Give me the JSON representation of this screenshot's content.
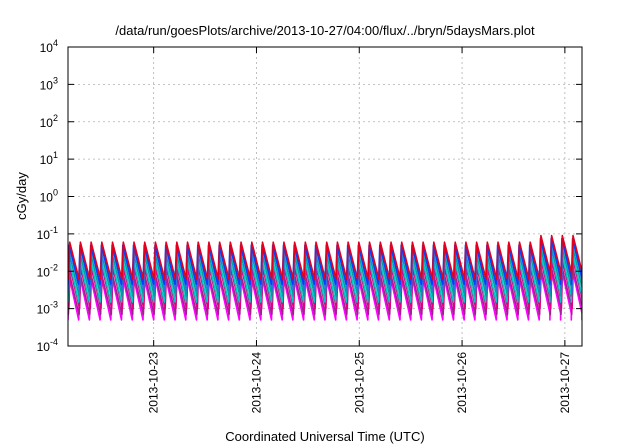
{
  "chart_data": {
    "type": "line",
    "title": "/data/run/goesPlots/archive/2013-10-27/04:00/flux/../bryn/5daysMars.plot",
    "xlabel": "Coordinated Universal Time (UTC)",
    "ylabel": "cGy/day",
    "yscale": "log",
    "ylim": [
      0.0001,
      10000
    ],
    "xlim": [
      "2013-10-22T04:00",
      "2013-10-27T04:00"
    ],
    "grid": true,
    "x_ticks": [
      {
        "value": "2013-10-23T00:00",
        "label": "2013-10-23"
      },
      {
        "value": "2013-10-24T00:00",
        "label": "2013-10-24"
      },
      {
        "value": "2013-10-25T00:00",
        "label": "2013-10-25"
      },
      {
        "value": "2013-10-26T00:00",
        "label": "2013-10-26"
      },
      {
        "value": "2013-10-27T00:00",
        "label": "2013-10-27"
      }
    ],
    "y_ticks": [
      {
        "value": 0.0001,
        "base": "10",
        "exp": "-4"
      },
      {
        "value": 0.001,
        "base": "10",
        "exp": "-3"
      },
      {
        "value": 0.01,
        "base": "10",
        "exp": "-2"
      },
      {
        "value": 0.1,
        "base": "10",
        "exp": "-1"
      },
      {
        "value": 1,
        "base": "10",
        "exp": "0"
      },
      {
        "value": 10,
        "base": "10",
        "exp": "1"
      },
      {
        "value": 100,
        "base": "10",
        "exp": "2"
      },
      {
        "value": 1000,
        "base": "10",
        "exp": "3"
      },
      {
        "value": 10000,
        "base": "10",
        "exp": "4"
      }
    ],
    "cycle_period_hours": 2.5,
    "series": [
      {
        "color": "#ff00ff",
        "peak": 0.007,
        "trough": 0.0005
      },
      {
        "color": "#a0208f",
        "peak": 0.008,
        "trough": 0.0007
      },
      {
        "color": "#e0007f",
        "peak": 0.012,
        "trough": 0.001
      },
      {
        "color": "#00c8c8",
        "peak": 0.02,
        "trough": 0.0015
      },
      {
        "color": "#00a0a0",
        "peak": 0.028,
        "trough": 0.0022
      },
      {
        "color": "#3070e0",
        "peak": 0.04,
        "trough": 0.003
      },
      {
        "color": "#0040ff",
        "peak": 0.05,
        "trough": 0.0045
      },
      {
        "color": "#e00020",
        "peak": 0.06,
        "trough": 0.006
      }
    ],
    "event": {
      "start": "2013-10-26T16:00",
      "end": "2013-10-27T04:00",
      "factor": 1.5
    }
  }
}
